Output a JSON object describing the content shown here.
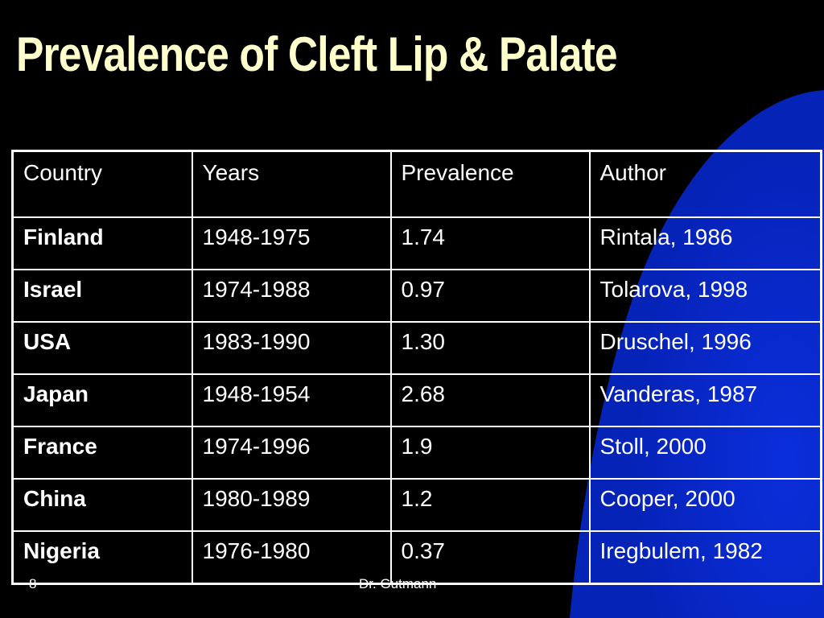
{
  "slide": {
    "title": "Prevalence of Cleft Lip & Palate",
    "number": "8",
    "footer": "Dr. Gutmann",
    "colors": {
      "background": "#000000",
      "title": "#FFFFCC",
      "accent_shape": "#0A2DCC",
      "text": "#FFFFFF"
    }
  },
  "table": {
    "headers": [
      "Country",
      "Years",
      "Prevalence",
      "Author"
    ],
    "rows": [
      {
        "country": "Finland",
        "years": "1948-1975",
        "prevalence": "1.74",
        "author": "Rintala, 1986"
      },
      {
        "country": "Israel",
        "years": "1974-1988",
        "prevalence": "0.97",
        "author": "Tolarova, 1998"
      },
      {
        "country": "USA",
        "years": "1983-1990",
        "prevalence": "1.30",
        "author": "Druschel, 1996"
      },
      {
        "country": "Japan",
        "years": "1948-1954",
        "prevalence": "2.68",
        "author": "Vanderas, 1987"
      },
      {
        "country": "France",
        "years": "1974-1996",
        "prevalence": "1.9",
        "author": "Stoll, 2000"
      },
      {
        "country": "China",
        "years": "1980-1989",
        "prevalence": "1.2",
        "author": "Cooper, 2000"
      },
      {
        "country": "Nigeria",
        "years": "1976-1980",
        "prevalence": "0.37",
        "author": "Iregbulem, 1982"
      }
    ]
  }
}
